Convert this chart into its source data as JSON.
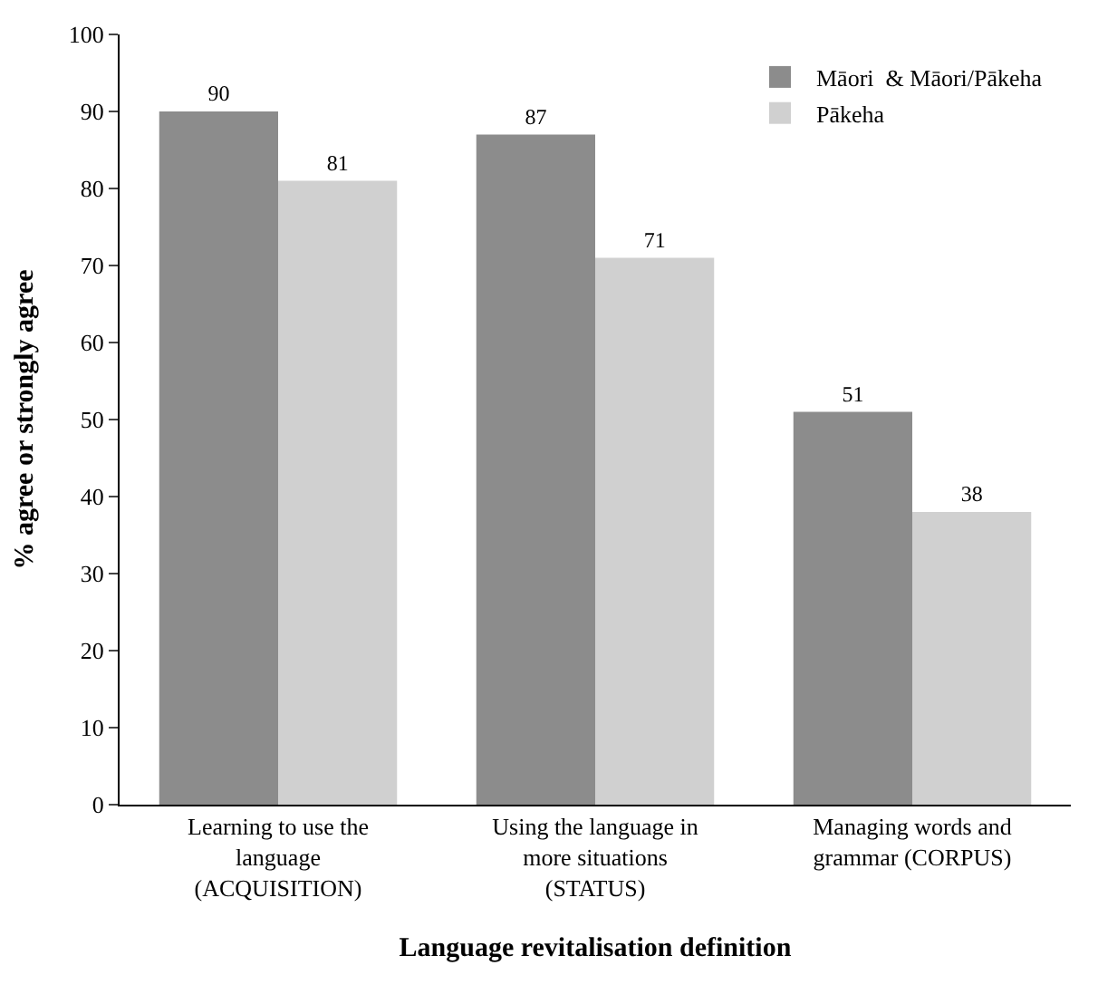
{
  "chart_data": {
    "type": "bar",
    "categories": [
      "Learning to use the language (ACQUISITION)",
      "Using the language in more situations (STATUS)",
      "Managing words and grammar (CORPUS)"
    ],
    "series": [
      {
        "name": "Māori  & Māori/Pākeha",
        "color": "#8c8c8c",
        "values": [
          90,
          87,
          51
        ]
      },
      {
        "name": "Pākeha",
        "color": "#d0d0d0",
        "values": [
          81,
          71,
          38
        ]
      }
    ],
    "xlabel": "Language revitalisation definition",
    "ylabel": "% agree or strongly agree",
    "ylim": [
      0,
      100
    ],
    "yticks": [
      0,
      10,
      20,
      30,
      40,
      50,
      60,
      70,
      80,
      90,
      100
    ],
    "data_labels": true,
    "legend": "top right"
  }
}
